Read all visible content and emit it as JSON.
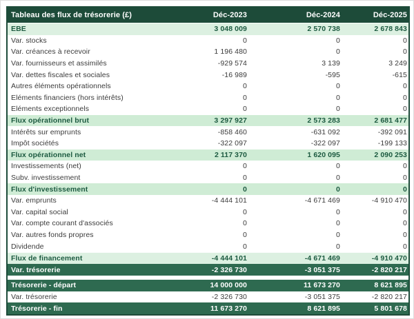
{
  "colors": {
    "header_bg": "#1d4b39",
    "dark_row_bg": "#2e6a50",
    "light_subtotal_bg": "#dcf0e1",
    "green_subtotal_bg": "#cfecd5",
    "subtotal_text": "#1c5a40",
    "body_text": "#3a3a3a",
    "table_border": "#1d4b39"
  },
  "chart_data": {
    "type": "table",
    "title": "Tableau des flux de trésorerie (£)",
    "columns": [
      "Déc-2023",
      "Déc-2024",
      "Déc-2025"
    ],
    "rows": [
      {
        "label": "EBE",
        "values": [
          "3 048 009",
          "2 570 738",
          "2 678 843"
        ],
        "style": "light"
      },
      {
        "label": "Var. stocks",
        "values": [
          "0",
          "0",
          "0"
        ],
        "style": "normal"
      },
      {
        "label": "Var. créances à recevoir",
        "values": [
          "1 196 480",
          "0",
          "0"
        ],
        "style": "normal"
      },
      {
        "label": "Var. fournisseurs et assimilés",
        "values": [
          "-929 574",
          "3 139",
          "3 249"
        ],
        "style": "normal"
      },
      {
        "label": "Var. dettes fiscales et sociales",
        "values": [
          "-16 989",
          "-595",
          "-615"
        ],
        "style": "normal"
      },
      {
        "label": "Autres éléments opérationnels",
        "values": [
          "0",
          "0",
          "0"
        ],
        "style": "normal"
      },
      {
        "label": "Eléments financiers (hors intérêts)",
        "values": [
          "0",
          "0",
          "0"
        ],
        "style": "normal"
      },
      {
        "label": "Eléments exceptionnels",
        "values": [
          "0",
          "0",
          "0"
        ],
        "style": "normal"
      },
      {
        "label": "Flux opérationnel brut",
        "values": [
          "3 297 927",
          "2 573 283",
          "2 681 477"
        ],
        "style": "green"
      },
      {
        "label": "Intérêts sur emprunts",
        "values": [
          "-858 460",
          "-631 092",
          "-392 091"
        ],
        "style": "normal"
      },
      {
        "label": "Impôt sociétés",
        "values": [
          "-322 097",
          "-322 097",
          "-199 133"
        ],
        "style": "normal"
      },
      {
        "label": "Flux opérationnel net",
        "values": [
          "2 117 370",
          "1 620 095",
          "2 090 253"
        ],
        "style": "green"
      },
      {
        "label": "Investissements (net)",
        "values": [
          "0",
          "0",
          "0"
        ],
        "style": "normal"
      },
      {
        "label": "Subv. investissement",
        "values": [
          "0",
          "0",
          "0"
        ],
        "style": "normal"
      },
      {
        "label": "Flux d'investissement",
        "values": [
          "0",
          "0",
          "0"
        ],
        "style": "green"
      },
      {
        "label": "Var. emprunts",
        "values": [
          "-4 444 101",
          "-4 671 469",
          "-4 910 470"
        ],
        "style": "normal"
      },
      {
        "label": "Var. capital social",
        "values": [
          "0",
          "0",
          "0"
        ],
        "style": "normal"
      },
      {
        "label": "Var. compte courant d'associés",
        "values": [
          "0",
          "0",
          "0"
        ],
        "style": "normal"
      },
      {
        "label": "Var. autres fonds propres",
        "values": [
          "0",
          "0",
          "0"
        ],
        "style": "normal"
      },
      {
        "label": "Dividende",
        "values": [
          "0",
          "0",
          "0"
        ],
        "style": "normal"
      },
      {
        "label": "Flux de financement",
        "values": [
          "-4 444 101",
          "-4 671 469",
          "-4 910 470"
        ],
        "style": "light"
      },
      {
        "label": "Var. trésorerie",
        "values": [
          "-2 326 730",
          "-3 051 375",
          "-2 820 217"
        ],
        "style": "dark"
      },
      {
        "label": "",
        "values": [],
        "style": "spacer"
      },
      {
        "label": "Trésorerie - départ",
        "values": [
          "14 000 000",
          "11 673 270",
          "8 621 895"
        ],
        "style": "dark"
      },
      {
        "label": "Var. trésorerie",
        "values": [
          "-2 326 730",
          "-3 051 375",
          "-2 820 217"
        ],
        "style": "normal"
      },
      {
        "label": "Trésorerie - fin",
        "values": [
          "11 673 270",
          "8 621 895",
          "5 801 678"
        ],
        "style": "dark"
      }
    ]
  }
}
